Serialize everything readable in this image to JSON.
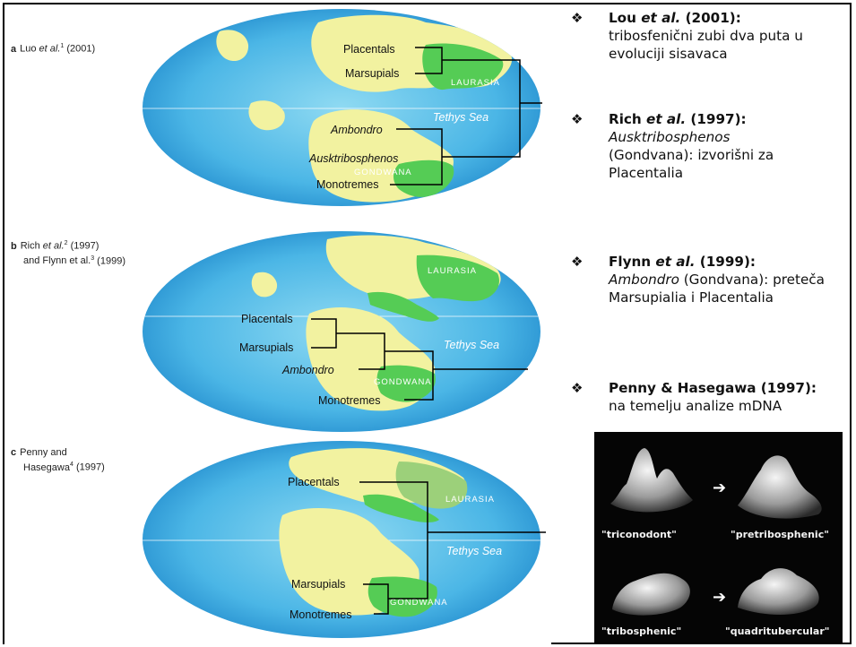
{
  "panels": [
    {
      "letter": "a",
      "authors_before": "Luo ",
      "authors_italic": "et al.",
      "sup": "1",
      "year": " (2001)",
      "line2": "",
      "taxa": [
        "Placentals",
        "Marsupials",
        "Ambondro",
        "Ausktribosphenos",
        "Monotremes"
      ],
      "regions": [
        "LAURASIA",
        "GONDWANA"
      ],
      "sea": "Tethys Sea"
    },
    {
      "letter": "b",
      "authors_before": "Rich ",
      "authors_italic": "et al.",
      "sup": "2",
      "year": " (1997)",
      "line2": "and Flynn et al.",
      "line2_sup": "3",
      "line2_year": " (1999)",
      "taxa": [
        "Placentals",
        "Marsupials",
        "Ambondro",
        "Monotremes"
      ],
      "regions": [
        "LAURASIA",
        "GONDWANA"
      ],
      "sea": "Tethys Sea"
    },
    {
      "letter": "c",
      "authors_before": "Penny and",
      "authors_italic": "",
      "sup": "",
      "year": "",
      "line2": "Hasegawa",
      "line2_sup": "4",
      "line2_year": " (1997)",
      "taxa": [
        "Placentals",
        "Marsupials",
        "Monotremes"
      ],
      "regions": [
        "LAURASIA",
        "GONDWANA"
      ],
      "sea": "Tethys Sea"
    }
  ],
  "notes": [
    {
      "head_before": "Lou ",
      "head_italic": "et al.",
      "head_after": " (2001):",
      "body": "tribosfenični zubi dva puta u evoluciji sisavaca"
    },
    {
      "head_before": "Rich ",
      "head_italic": "et al.",
      "head_after": " (1997):",
      "body_italic": "Ausktribosphenos",
      "body": "(Gondvana): izvorišni za Placentalia"
    },
    {
      "head_before": "Flynn ",
      "head_italic": "et al.",
      "head_after": " (1999):",
      "body_italic": "Ambondro",
      "body": "(Gondvana): preteča Marsupialia i Placentalia"
    },
    {
      "head_before": "Penny & Hasegawa (1997):",
      "head_italic": "",
      "head_after": "",
      "body": "na temelju analize mDNA"
    }
  ],
  "teeth": [
    "\"triconodont\"",
    "\"pretribosphenic\"",
    "\"tribosphenic\"",
    "\"quadritubercular\""
  ],
  "colors": {
    "ocean_center": "#7fd0ee",
    "ocean_edge": "#1f8fd0",
    "gondwana": "#f2f2a0",
    "laurasia": "#55cc55",
    "bullet": "#111111"
  },
  "icons": {
    "bullet": "diamond-bullet-icon",
    "arrow": "right-arrow-icon"
  }
}
